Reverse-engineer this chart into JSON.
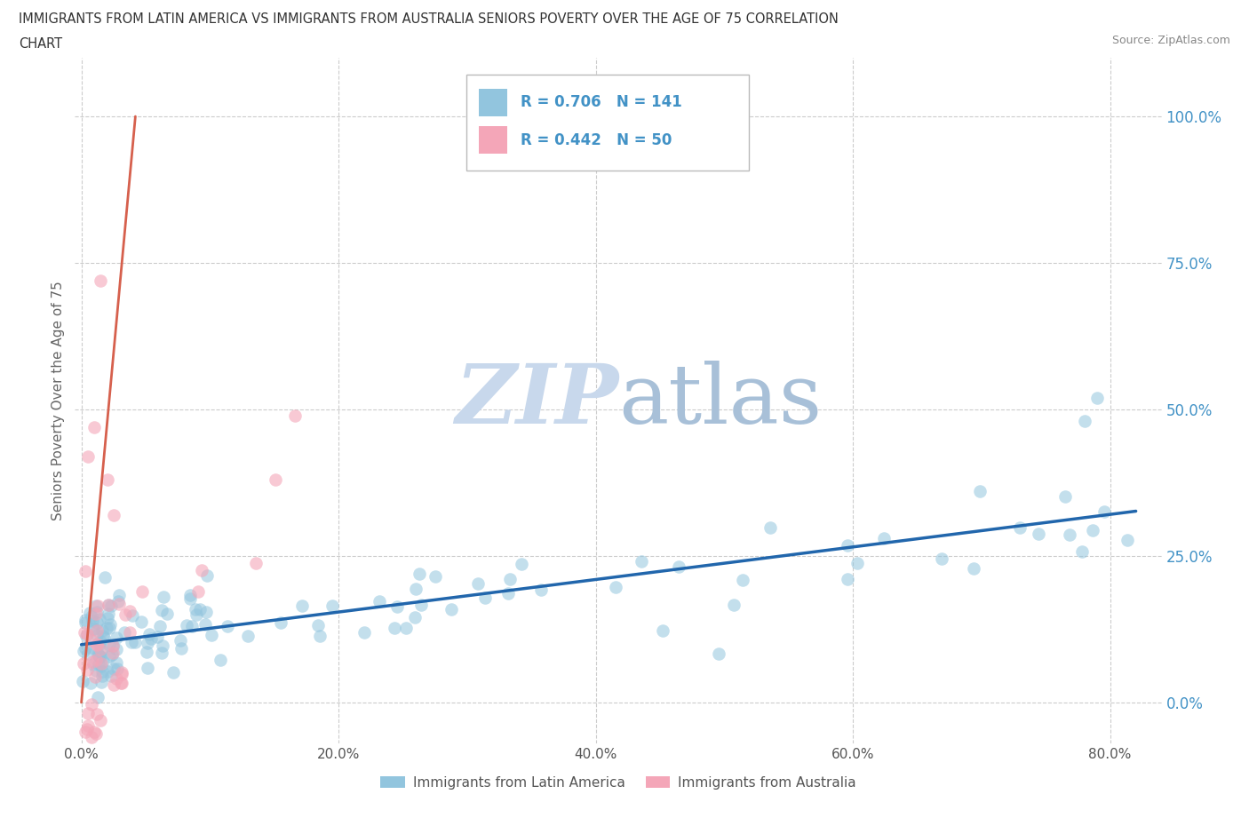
{
  "title_line1": "IMMIGRANTS FROM LATIN AMERICA VS IMMIGRANTS FROM AUSTRALIA SENIORS POVERTY OVER THE AGE OF 75 CORRELATION",
  "title_line2": "CHART",
  "source": "Source: ZipAtlas.com",
  "ylabel": "Seniors Poverty Over the Age of 75",
  "xticklabels": [
    "0.0%",
    "20.0%",
    "40.0%",
    "60.0%",
    "80.0%"
  ],
  "yticklabels": [
    "0.0%",
    "25.0%",
    "50.0%",
    "75.0%",
    "100.0%"
  ],
  "xtick_vals": [
    0.0,
    0.2,
    0.4,
    0.6,
    0.8
  ],
  "ytick_vals": [
    0.0,
    0.25,
    0.5,
    0.75,
    1.0
  ],
  "xlim": [
    -0.005,
    0.84
  ],
  "ylim": [
    -0.07,
    1.1
  ],
  "R_latin": 0.706,
  "N_latin": 141,
  "R_australia": 0.442,
  "N_australia": 50,
  "color_latin": "#92c5de",
  "color_australia": "#f4a6b8",
  "trendline_color_latin": "#2166ac",
  "trendline_color_australia": "#d6604d",
  "tick_color": "#4292c6",
  "ylabel_color": "#666666",
  "watermark_color": "#c8d8ec",
  "legend_label_latin": "Immigrants from Latin America",
  "legend_label_australia": "Immigrants from Australia"
}
